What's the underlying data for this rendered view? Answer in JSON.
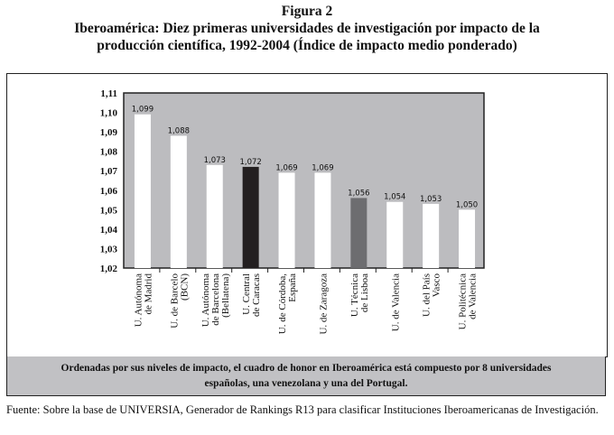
{
  "figure_number": "Figura 2",
  "title_line1": "Iberoamérica: Diez primeras universidades de investigación por impacto de la",
  "title_line2": "producción científica, 1992-2004 (Índice de impacto medio ponderado)",
  "caption_line1": "Ordenadas por sus niveles de impacto, el cuadro de honor en Iberoamérica está compuesto por 8 universidades",
  "caption_line2": "españolas, una venezolana y una del Portugal.",
  "source": "Fuente: Sobre la base de UNIVERSIA, Generador de Rankings R13 para clasificar Instituciones Iberoamericanas de Investigación.",
  "colors": {
    "plot_bg": "#bcbcbf",
    "bar_default": "#ffffff",
    "bar_caracas": "#231f20",
    "bar_lisboa": "#6d6d70"
  },
  "chart_data": {
    "type": "bar",
    "title": "Iberoamérica: Diez primeras universidades de investigación por impacto de la producción científica, 1992-2004 (Índice de impacto medio ponderado)",
    "xlabel": "",
    "ylabel": "",
    "ylim": [
      1.02,
      1.11
    ],
    "yticks": [
      "1,02",
      "1,03",
      "1,04",
      "1,05",
      "1,06",
      "1,07",
      "1,08",
      "1,09",
      "1,10",
      "1,11"
    ],
    "categories": [
      [
        "U. Autónoma",
        "de Madrid"
      ],
      [
        "U. de Barcelo",
        "(BCN)"
      ],
      [
        "U. Autónoma",
        "de Barcelona",
        "(Bellatena)"
      ],
      [
        "U. Central",
        "de Caracas"
      ],
      [
        "U. de Córdoba,",
        "España"
      ],
      [
        "U. de Zaragoza"
      ],
      [
        "U. Técnica",
        "de Lisboa"
      ],
      [
        "U. de Valencia"
      ],
      [
        "U. del País",
        "Vasco"
      ],
      [
        "U. Politécnica",
        "de Valencia"
      ]
    ],
    "values": [
      1.099,
      1.088,
      1.073,
      1.072,
      1.069,
      1.069,
      1.056,
      1.054,
      1.053,
      1.05
    ],
    "value_labels": [
      "1,099",
      "1,088",
      "1,073",
      "1,072",
      "1,069",
      "1,069",
      "1,056",
      "1,054",
      "1,053",
      "1,050"
    ],
    "bar_colors": [
      "bar_default",
      "bar_default",
      "bar_default",
      "bar_caracas",
      "bar_default",
      "bar_default",
      "bar_lisboa",
      "bar_default",
      "bar_default",
      "bar_default"
    ],
    "grid": false,
    "legend": "none"
  }
}
